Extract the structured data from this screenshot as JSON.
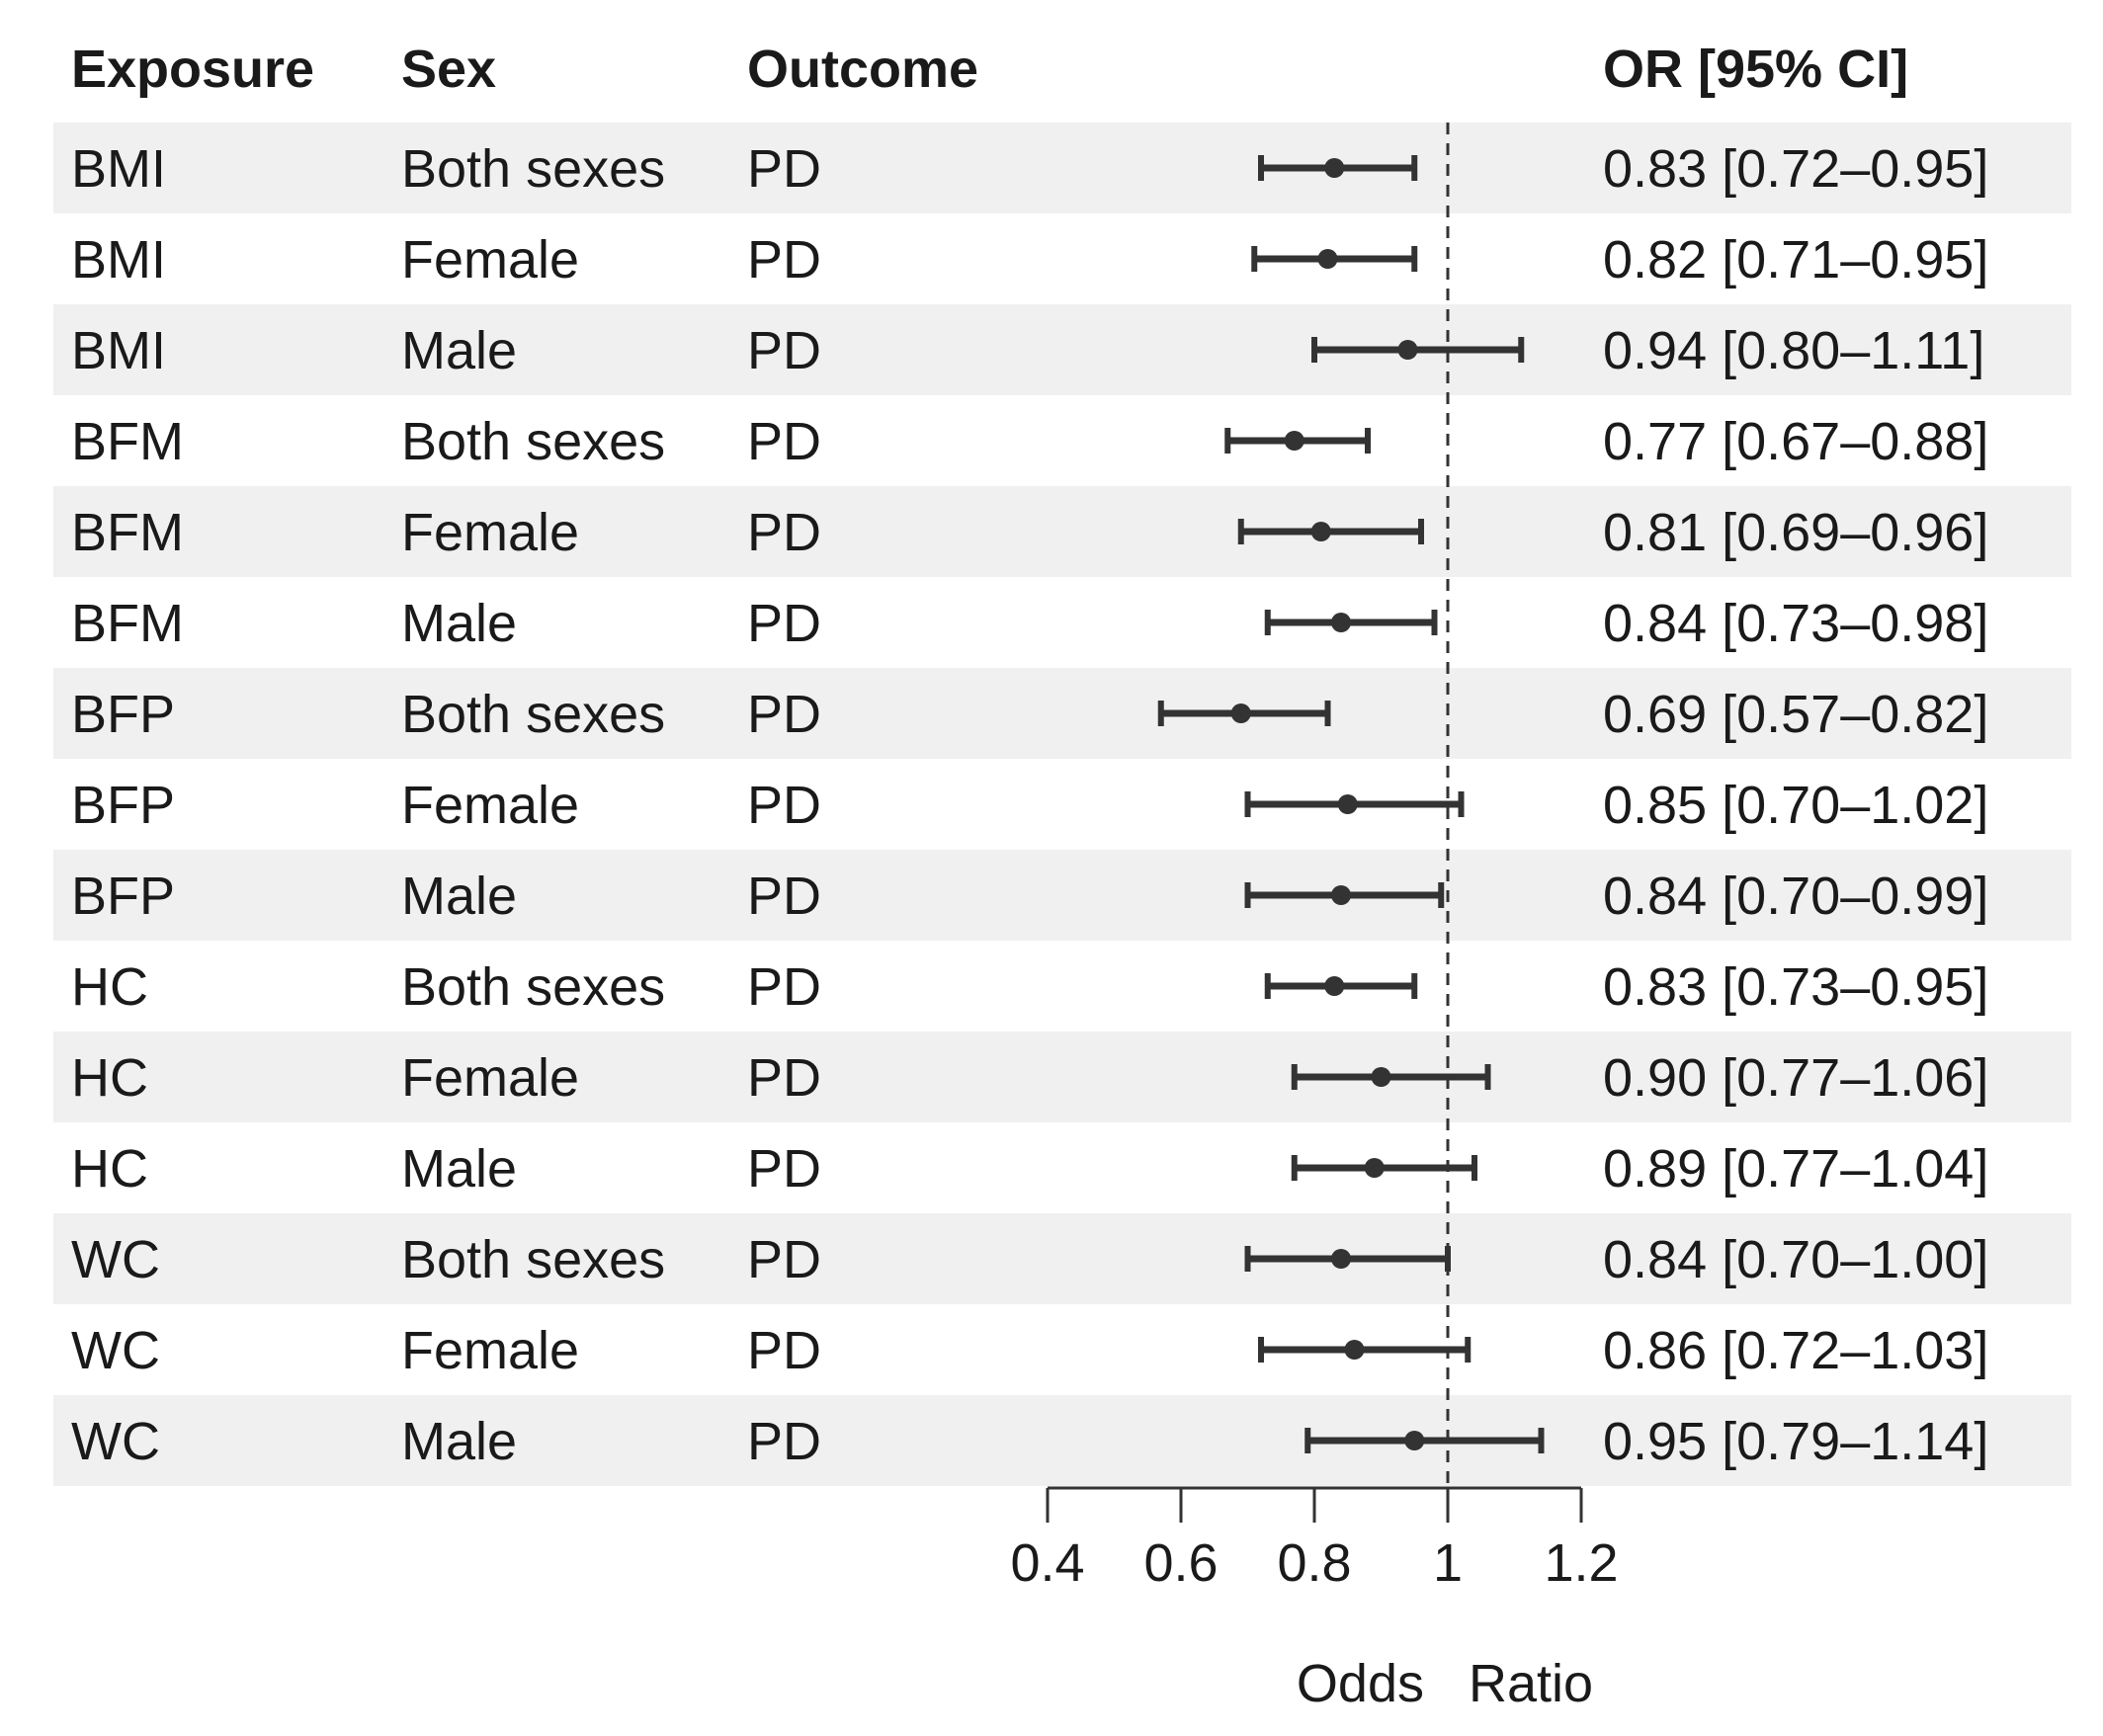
{
  "chart_data": {
    "type": "forest",
    "columns": {
      "exposure": "Exposure",
      "sex": "Sex",
      "outcome": "Outcome",
      "or_ci": "OR [95% CI]"
    },
    "rows": [
      {
        "exposure": "BMI",
        "sex": "Both sexes",
        "outcome": "PD",
        "or": 0.83,
        "lo": 0.72,
        "hi": 0.95,
        "label": "0.83 [0.72–0.95]"
      },
      {
        "exposure": "BMI",
        "sex": "Female",
        "outcome": "PD",
        "or": 0.82,
        "lo": 0.71,
        "hi": 0.95,
        "label": "0.82 [0.71–0.95]"
      },
      {
        "exposure": "BMI",
        "sex": "Male",
        "outcome": "PD",
        "or": 0.94,
        "lo": 0.8,
        "hi": 1.11,
        "label": "0.94 [0.80–1.11]"
      },
      {
        "exposure": "BFM",
        "sex": "Both sexes",
        "outcome": "PD",
        "or": 0.77,
        "lo": 0.67,
        "hi": 0.88,
        "label": "0.77 [0.67–0.88]"
      },
      {
        "exposure": "BFM",
        "sex": "Female",
        "outcome": "PD",
        "or": 0.81,
        "lo": 0.69,
        "hi": 0.96,
        "label": "0.81 [0.69–0.96]"
      },
      {
        "exposure": "BFM",
        "sex": "Male",
        "outcome": "PD",
        "or": 0.84,
        "lo": 0.73,
        "hi": 0.98,
        "label": "0.84 [0.73–0.98]"
      },
      {
        "exposure": "BFP",
        "sex": "Both sexes",
        "outcome": "PD",
        "or": 0.69,
        "lo": 0.57,
        "hi": 0.82,
        "label": "0.69 [0.57–0.82]"
      },
      {
        "exposure": "BFP",
        "sex": "Female",
        "outcome": "PD",
        "or": 0.85,
        "lo": 0.7,
        "hi": 1.02,
        "label": "0.85 [0.70–1.02]"
      },
      {
        "exposure": "BFP",
        "sex": "Male",
        "outcome": "PD",
        "or": 0.84,
        "lo": 0.7,
        "hi": 0.99,
        "label": "0.84 [0.70–0.99]"
      },
      {
        "exposure": "HC",
        "sex": "Both sexes",
        "outcome": "PD",
        "or": 0.83,
        "lo": 0.73,
        "hi": 0.95,
        "label": "0.83 [0.73–0.95]"
      },
      {
        "exposure": "HC",
        "sex": "Female",
        "outcome": "PD",
        "or": 0.9,
        "lo": 0.77,
        "hi": 1.06,
        "label": "0.90 [0.77–1.06]"
      },
      {
        "exposure": "HC",
        "sex": "Male",
        "outcome": "PD",
        "or": 0.89,
        "lo": 0.77,
        "hi": 1.04,
        "label": "0.89 [0.77–1.04]"
      },
      {
        "exposure": "WC",
        "sex": "Both sexes",
        "outcome": "PD",
        "or": 0.84,
        "lo": 0.7,
        "hi": 1.0,
        "label": "0.84 [0.70–1.00]"
      },
      {
        "exposure": "WC",
        "sex": "Female",
        "outcome": "PD",
        "or": 0.86,
        "lo": 0.72,
        "hi": 1.03,
        "label": "0.86 [0.72–1.03]"
      },
      {
        "exposure": "WC",
        "sex": "Male",
        "outcome": "PD",
        "or": 0.95,
        "lo": 0.79,
        "hi": 1.14,
        "label": "0.95 [0.79–1.14]"
      }
    ],
    "xlabel": "Odds   Ratio",
    "xlim": [
      0.4,
      1.2
    ],
    "xticks": [
      0.4,
      0.6,
      0.8,
      1.0,
      1.2
    ],
    "xtick_labels": [
      "0.4",
      "0.6",
      "0.8",
      "1",
      "1.2"
    ],
    "reference_line": 1.0,
    "row_shading": "alternating",
    "colors": {
      "shade": "#f0f0f0",
      "marker": "#333333",
      "text": "#1a1a1a"
    }
  }
}
